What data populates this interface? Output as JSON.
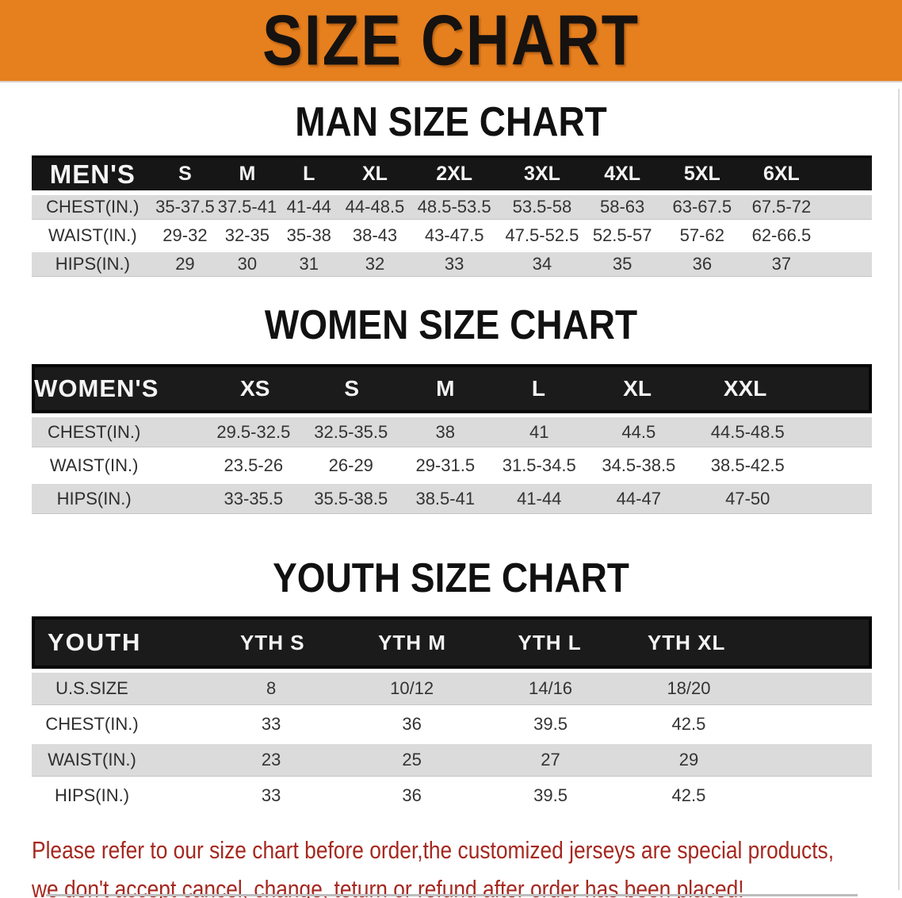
{
  "banner": {
    "title": "SIZE CHART",
    "bg_color": "#E67F1E",
    "title_color": "#151210"
  },
  "colors": {
    "table_header_bg": "#161616",
    "table_header_text": "#F4F4F4",
    "row_grey": "#DBDBDB",
    "row_white": "#FFFFFF",
    "cell_text": "#333333",
    "footer_text": "#A5281F"
  },
  "sections": {
    "men": {
      "heading": "MAN SIZE CHART",
      "header": {
        "label": "MEN'S",
        "cols": [
          "S",
          "M",
          "L",
          "XL",
          "2XL",
          "3XL",
          "4XL",
          "5XL",
          "6XL"
        ]
      },
      "rows": [
        {
          "label": "CHEST(IN.)",
          "values": [
            "35-37.5",
            "37.5-41",
            "41-44",
            "44-48.5",
            "48.5-53.5",
            "53.5-58",
            "58-63",
            "63-67.5",
            "67.5-72"
          ]
        },
        {
          "label": "WAIST(IN.)",
          "values": [
            "29-32",
            "32-35",
            "35-38",
            "38-43",
            "43-47.5",
            "47.5-52.5",
            "52.5-57",
            "57-62",
            "62-66.5"
          ]
        },
        {
          "label": "HIPS(IN.)",
          "values": [
            "29",
            "30",
            "31",
            "32",
            "33",
            "34",
            "35",
            "36",
            "37"
          ]
        }
      ]
    },
    "women": {
      "heading": "WOMEN SIZE CHART",
      "header": {
        "label": "WOMEN'S",
        "cols": [
          "XS",
          "S",
          "M",
          "L",
          "XL",
          "XXL"
        ]
      },
      "rows": [
        {
          "label": "CHEST(IN.)",
          "values": [
            "29.5-32.5",
            "32.5-35.5",
            "38",
            "41",
            "44.5",
            "44.5-48.5"
          ]
        },
        {
          "label": "WAIST(IN.)",
          "values": [
            "23.5-26",
            "26-29",
            "29-31.5",
            "31.5-34.5",
            "34.5-38.5",
            "38.5-42.5"
          ]
        },
        {
          "label": "HIPS(IN.)",
          "values": [
            "33-35.5",
            "35.5-38.5",
            "38.5-41",
            "41-44",
            "44-47",
            "47-50"
          ]
        }
      ]
    },
    "youth": {
      "heading": "YOUTH SIZE CHART",
      "header": {
        "label": "YOUTH",
        "cols": [
          "YTH S",
          "YTH M",
          "YTH L",
          "YTH XL"
        ]
      },
      "rows": [
        {
          "label": "U.S.SIZE",
          "values": [
            "8",
            "10/12",
            "14/16",
            "18/20"
          ]
        },
        {
          "label": "CHEST(IN.)",
          "values": [
            "33",
            "36",
            "39.5",
            "42.5"
          ]
        },
        {
          "label": "WAIST(IN.)",
          "values": [
            "23",
            "25",
            "27",
            "29"
          ]
        },
        {
          "label": "HIPS(IN.)",
          "values": [
            "33",
            "36",
            "39.5",
            "42.5"
          ]
        }
      ]
    }
  },
  "footer": {
    "line1": "Please refer to our size chart before order,the customized jerseys are special products,",
    "line2": "we don't accept cancel, change, teturn or refund after order has been placed!"
  }
}
